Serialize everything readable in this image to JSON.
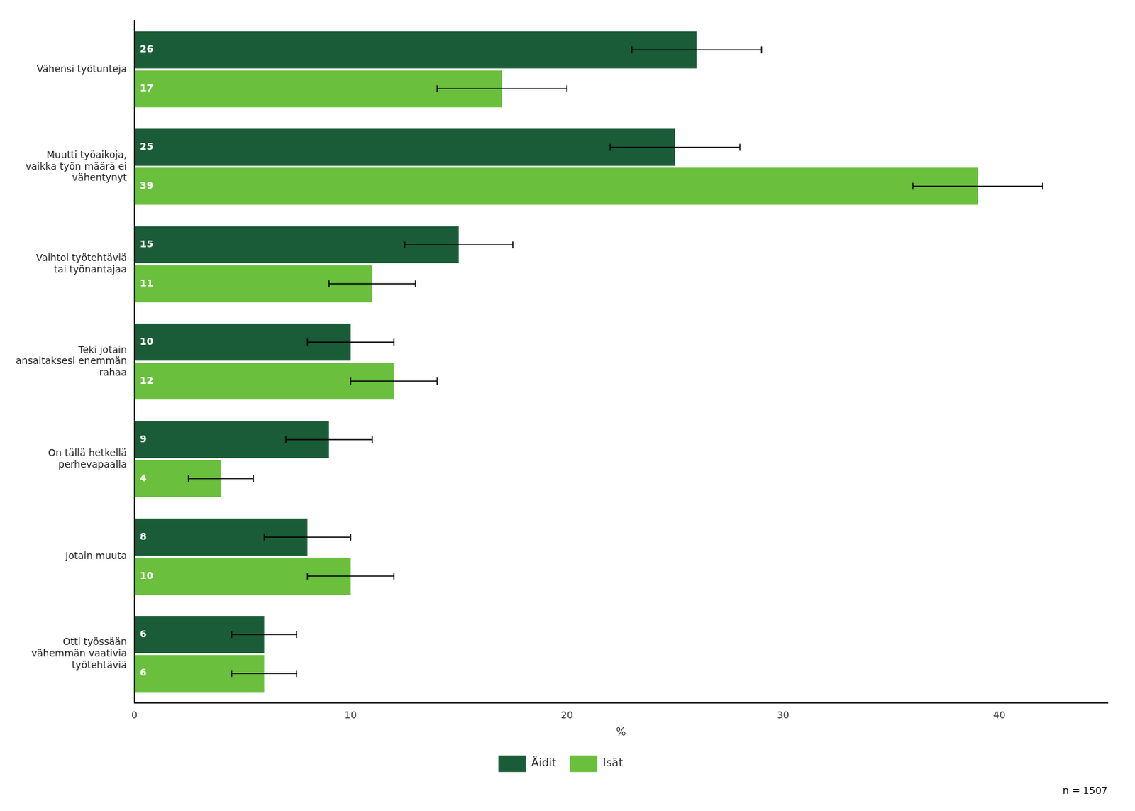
{
  "chart_data": {
    "type": "bar",
    "orientation": "horizontal",
    "categories": [
      "Vähensi työtunteja",
      "Muutti työaikoja,\nvaikka työn määrä ei\nvähentynyt",
      "Vaihtoi työtehtäviä\ntai työnantajaa",
      "Teki jotain\nansaitaksesi enemmän\nrahaa",
      "On tällä hetkellä\nperhevapaalla",
      "Jotain muuta",
      "Otti työssään\nvähemmän vaativia\ntyötehtäviä"
    ],
    "series": [
      {
        "name": "Äidit",
        "color": "#1a5c38",
        "values": [
          26,
          25,
          15,
          10,
          9,
          8,
          6
        ],
        "errors": [
          3,
          3,
          2.5,
          2,
          2,
          2,
          1.5
        ]
      },
      {
        "name": "Isät",
        "color": "#6abf3c",
        "values": [
          17,
          39,
          11,
          12,
          4,
          10,
          6
        ],
        "errors": [
          3,
          3,
          2,
          2,
          1.5,
          2,
          1.5
        ]
      }
    ],
    "xlabel": "%",
    "xlim": [
      0,
      45
    ],
    "xticks": [
      0,
      10,
      20,
      30,
      40
    ],
    "grid": false,
    "data_labels": true,
    "legend": "bottom",
    "annotations": [
      "n = 1507"
    ]
  }
}
